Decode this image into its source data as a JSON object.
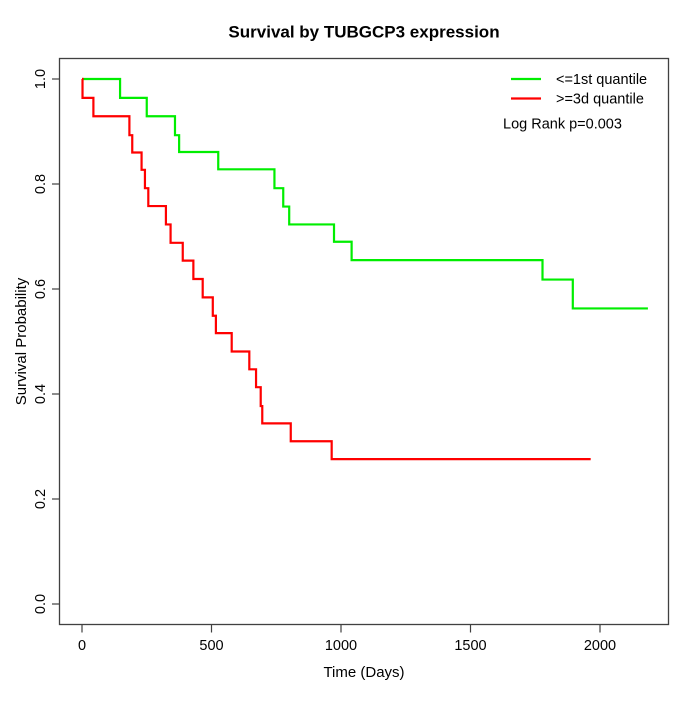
{
  "title": "Survival by TUBGCP3 expression",
  "axes": {
    "xlabel": "Time (Days)",
    "ylabel": "Survival Probability",
    "xtick_labels": [
      "0",
      "500",
      "1000",
      "1500",
      "2000"
    ],
    "ytick_labels": [
      "0.0",
      "0.2",
      "0.4",
      "0.6",
      "0.8",
      "1.0"
    ]
  },
  "legend": {
    "items": [
      {
        "label": "<=1st quantile",
        "color": "#00ee00"
      },
      {
        "label": ">=3d quantile",
        "color": "#ff0000"
      }
    ],
    "annotation": "Log Rank p=0.003"
  },
  "chart_data": {
    "type": "line",
    "subtype": "kaplan-meier-step",
    "title": "Survival by TUBGCP3 expression",
    "xlabel": "Time (Days)",
    "ylabel": "Survival Probability",
    "xlim": [
      0,
      2200
    ],
    "ylim": [
      0.0,
      1.0
    ],
    "xticks": [
      0,
      500,
      1000,
      1500,
      2000
    ],
    "yticks": [
      0.0,
      0.2,
      0.4,
      0.6,
      0.8,
      1.0
    ],
    "grid": false,
    "legend_position": "top-right",
    "annotation": "Log Rank p=0.003",
    "series": [
      {
        "name": "<=1st quantile",
        "color": "#00ee00",
        "end_time": 2185,
        "points": [
          [
            0,
            1.0
          ],
          [
            147,
            0.964
          ],
          [
            250,
            0.929
          ],
          [
            359,
            0.893
          ],
          [
            375,
            0.861
          ],
          [
            526,
            0.828
          ],
          [
            743,
            0.792
          ],
          [
            777,
            0.757
          ],
          [
            800,
            0.723
          ],
          [
            973,
            0.69
          ],
          [
            1041,
            0.655
          ],
          [
            1778,
            0.618
          ],
          [
            1895,
            0.563
          ]
        ]
      },
      {
        "name": ">=3d quantile",
        "color": "#ff0000",
        "end_time": 1964,
        "points": [
          [
            0,
            1.0
          ],
          [
            2,
            0.964
          ],
          [
            44,
            0.929
          ],
          [
            183,
            0.893
          ],
          [
            194,
            0.86
          ],
          [
            230,
            0.827
          ],
          [
            243,
            0.792
          ],
          [
            256,
            0.758
          ],
          [
            324,
            0.723
          ],
          [
            342,
            0.688
          ],
          [
            389,
            0.654
          ],
          [
            430,
            0.619
          ],
          [
            466,
            0.584
          ],
          [
            505,
            0.549
          ],
          [
            517,
            0.516
          ],
          [
            578,
            0.481
          ],
          [
            646,
            0.447
          ],
          [
            672,
            0.413
          ],
          [
            690,
            0.377
          ],
          [
            696,
            0.344
          ],
          [
            806,
            0.31
          ],
          [
            964,
            0.276
          ]
        ]
      }
    ]
  }
}
